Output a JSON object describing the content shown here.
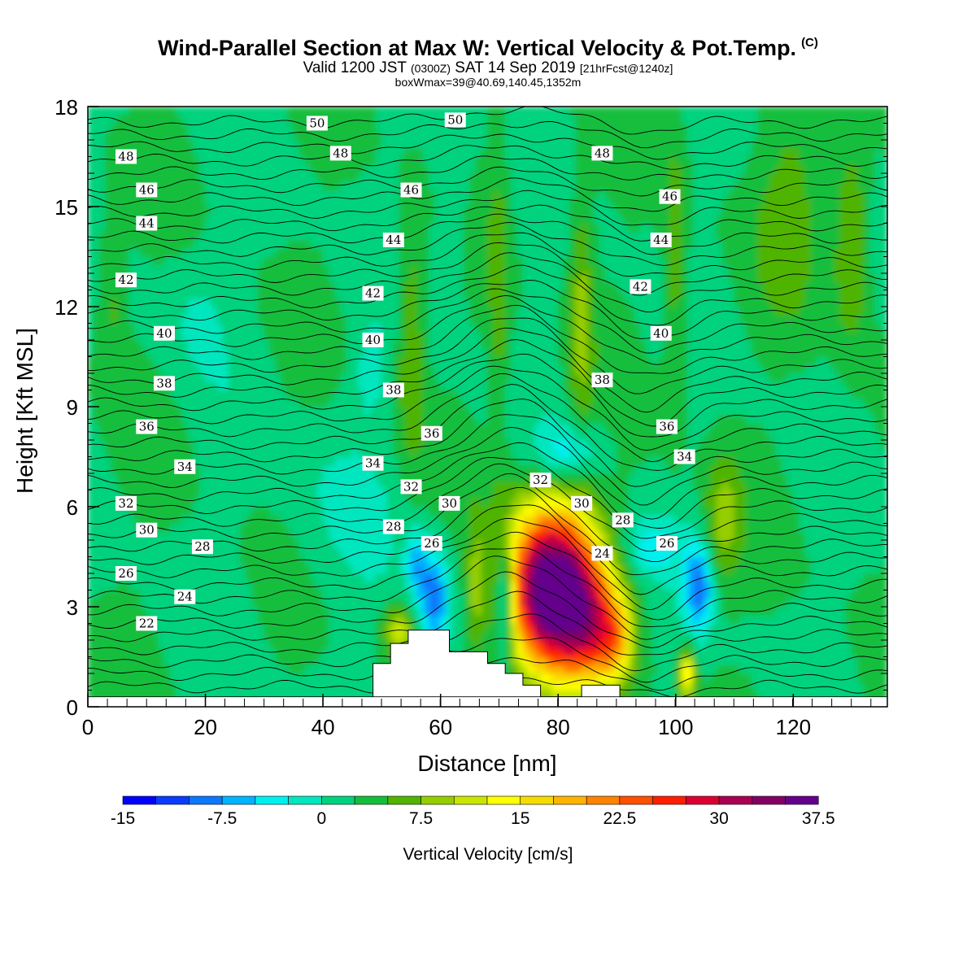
{
  "header": {
    "title": "Wind-Parallel Section at Max W: Vertical Velocity & Pot.Temp.",
    "copyright": "(C)",
    "valid_prefix": "Valid 1200 JST",
    "valid_zulu": "(0300Z)",
    "valid_date": "SAT 14 Sep 2019",
    "forecast": "[21hrFcst@1240z]",
    "boxwmax": "boxWmax=39@40.69,140.45,1352m"
  },
  "colors": {
    "levels": [
      "#0000ff",
      "#0a3cff",
      "#0a78ff",
      "#00b4ff",
      "#00f0f0",
      "#00e6be",
      "#00d27d",
      "#14be3c",
      "#50b400",
      "#96cd00",
      "#c8e600",
      "#ffff00",
      "#f5dc00",
      "#ffb400",
      "#ff8200",
      "#ff5000",
      "#ff1e00",
      "#dc0032",
      "#aa0050",
      "#820064",
      "#64008c"
    ]
  },
  "chart_data": {
    "type": "heatmap",
    "title": "Wind-Parallel Section at Max W: Vertical Velocity & Pot.Temp.",
    "xlabel": "Distance [nm]",
    "ylabel": "Height [Kft MSL]",
    "xlim": [
      0,
      136
    ],
    "ylim": [
      0,
      18
    ],
    "xticks": [
      "0",
      "20",
      "40",
      "60",
      "80",
      "100",
      "120"
    ],
    "xtick_values": [
      0,
      20,
      40,
      60,
      80,
      100,
      120
    ],
    "yticks": [
      "0",
      "3",
      "6",
      "9",
      "12",
      "15",
      "18"
    ],
    "ytick_values": [
      0,
      3,
      6,
      9,
      12,
      15,
      18
    ],
    "colorbar": {
      "label": "Vertical Velocity [cm/s]",
      "min": -15,
      "max": 40,
      "step": 2.5,
      "tick_labels": [
        "-15",
        "-7.5",
        "0",
        "7.5",
        "15",
        "22.5",
        "30",
        "37.5"
      ],
      "tick_values": [
        -15,
        -7.5,
        0,
        7.5,
        15,
        22.5,
        30,
        37.5
      ]
    },
    "terrain": [
      [
        48.5,
        0
      ],
      [
        48.5,
        1.3
      ],
      [
        51.5,
        1.3
      ],
      [
        51.5,
        1.9
      ],
      [
        54.5,
        1.9
      ],
      [
        54.5,
        2.3
      ],
      [
        61.5,
        2.3
      ],
      [
        61.5,
        1.65
      ],
      [
        68,
        1.65
      ],
      [
        68,
        1.3
      ],
      [
        71,
        1.3
      ],
      [
        71,
        1
      ],
      [
        74,
        1
      ],
      [
        74,
        0.65
      ],
      [
        77,
        0.65
      ],
      [
        77,
        0.3
      ],
      [
        84,
        0.3
      ],
      [
        84,
        0.65
      ],
      [
        90.5,
        0.65
      ],
      [
        90.5,
        0.3
      ],
      [
        91,
        0.3
      ],
      [
        91,
        0
      ]
    ],
    "w_features": [
      {
        "x": 79,
        "z": 3.5,
        "rx": 7.5,
        "rz": 2.5,
        "w": 39
      },
      {
        "x": 86,
        "z": 2.4,
        "rx": 5,
        "rz": 1.8,
        "w": 13
      },
      {
        "x": 90,
        "z": 2,
        "rx": 3,
        "rz": 1.2,
        "w": 10
      },
      {
        "x": 71,
        "z": 3.3,
        "rx": 1.6,
        "rz": 1.7,
        "w": -13
      },
      {
        "x": 59,
        "z": 3.2,
        "rx": 2.6,
        "rz": 1.6,
        "w": -11
      },
      {
        "x": 56,
        "z": 4.3,
        "rx": 1.8,
        "rz": 1,
        "w": -7
      },
      {
        "x": 66,
        "z": 3.5,
        "rx": 1.5,
        "rz": 2,
        "w": 5
      },
      {
        "x": 82,
        "z": 7.6,
        "rx": 5.5,
        "rz": 0.9,
        "w": -7
      },
      {
        "x": 104,
        "z": 3.6,
        "rx": 2.4,
        "rz": 1.3,
        "w": -11
      },
      {
        "x": 96,
        "z": 4.8,
        "rx": 5,
        "rz": 0.8,
        "w": -5
      },
      {
        "x": 53,
        "z": 2.3,
        "rx": 2.5,
        "rz": 0.8,
        "w": 9
      },
      {
        "x": 102,
        "z": 1,
        "rx": 1.3,
        "rz": 0.7,
        "w": 14
      },
      {
        "x": 108,
        "z": 5.5,
        "rx": 3,
        "rz": 2,
        "w": 6
      },
      {
        "x": 55,
        "z": 11,
        "rx": 2.3,
        "rz": 3.5,
        "w": 6
      },
      {
        "x": 70,
        "z": 12,
        "rx": 1.8,
        "rz": 5,
        "w": 4
      },
      {
        "x": 84,
        "z": 12,
        "rx": 2,
        "rz": 4,
        "w": 6
      },
      {
        "x": 100,
        "z": 13,
        "rx": 2,
        "rz": 4,
        "w": 5
      },
      {
        "x": 130,
        "z": 14,
        "rx": 3,
        "rz": 3,
        "w": 7
      },
      {
        "x": 4,
        "z": 12.5,
        "rx": 2.5,
        "rz": 2.5,
        "w": 4
      },
      {
        "x": 120,
        "z": 15,
        "rx": 6,
        "rz": 3,
        "w": 4
      },
      {
        "x": 48,
        "z": 10,
        "rx": 3,
        "rz": 1.5,
        "w": -3
      },
      {
        "x": 42,
        "z": 6,
        "rx": 10,
        "rz": 3,
        "w": -2
      },
      {
        "x": 18,
        "z": 12,
        "rx": 6,
        "rz": 2,
        "w": -2
      },
      {
        "x": 62,
        "z": 15,
        "rx": 3,
        "rz": 3,
        "w": -3
      }
    ],
    "theta_labels": [
      {
        "text": "50",
        "x": 39,
        "z": 17.5
      },
      {
        "text": "50",
        "x": 62.5,
        "z": 17.6
      },
      {
        "text": "48",
        "x": 6.5,
        "z": 16.5
      },
      {
        "text": "48",
        "x": 43,
        "z": 16.6
      },
      {
        "text": "48",
        "x": 87.5,
        "z": 16.6
      },
      {
        "text": "46",
        "x": 10,
        "z": 15.5
      },
      {
        "text": "46",
        "x": 55,
        "z": 15.5
      },
      {
        "text": "46",
        "x": 99,
        "z": 15.3
      },
      {
        "text": "44",
        "x": 10,
        "z": 14.5
      },
      {
        "text": "44",
        "x": 52,
        "z": 14
      },
      {
        "text": "44",
        "x": 97.5,
        "z": 14
      },
      {
        "text": "42",
        "x": 6.5,
        "z": 12.8
      },
      {
        "text": "42",
        "x": 48.5,
        "z": 12.4
      },
      {
        "text": "42",
        "x": 94,
        "z": 12.6
      },
      {
        "text": "40",
        "x": 13,
        "z": 11.2
      },
      {
        "text": "40",
        "x": 48.5,
        "z": 11
      },
      {
        "text": "40",
        "x": 97.5,
        "z": 11.2
      },
      {
        "text": "38",
        "x": 13,
        "z": 9.7
      },
      {
        "text": "38",
        "x": 52,
        "z": 9.5
      },
      {
        "text": "38",
        "x": 87.5,
        "z": 9.8
      },
      {
        "text": "36",
        "x": 10,
        "z": 8.4
      },
      {
        "text": "36",
        "x": 58.5,
        "z": 8.2
      },
      {
        "text": "36",
        "x": 98.5,
        "z": 8.4
      },
      {
        "text": "34",
        "x": 16.5,
        "z": 7.2
      },
      {
        "text": "34",
        "x": 48.5,
        "z": 7.3
      },
      {
        "text": "34",
        "x": 101.5,
        "z": 7.5
      },
      {
        "text": "32",
        "x": 6.5,
        "z": 6.1
      },
      {
        "text": "32",
        "x": 55,
        "z": 6.6
      },
      {
        "text": "32",
        "x": 77,
        "z": 6.8
      },
      {
        "text": "30",
        "x": 10,
        "z": 5.3
      },
      {
        "text": "30",
        "x": 61.5,
        "z": 6.1
      },
      {
        "text": "30",
        "x": 84,
        "z": 6.1
      },
      {
        "text": "28",
        "x": 19.5,
        "z": 4.8
      },
      {
        "text": "28",
        "x": 52,
        "z": 5.4
      },
      {
        "text": "28",
        "x": 91,
        "z": 5.6
      },
      {
        "text": "26",
        "x": 6.5,
        "z": 4
      },
      {
        "text": "26",
        "x": 58.5,
        "z": 4.9
      },
      {
        "text": "26",
        "x": 98.5,
        "z": 4.9
      },
      {
        "text": "24",
        "x": 16.5,
        "z": 3.3
      },
      {
        "text": "24",
        "x": 87.5,
        "z": 4.6
      },
      {
        "text": "22",
        "x": 10,
        "z": 2.5
      }
    ]
  }
}
